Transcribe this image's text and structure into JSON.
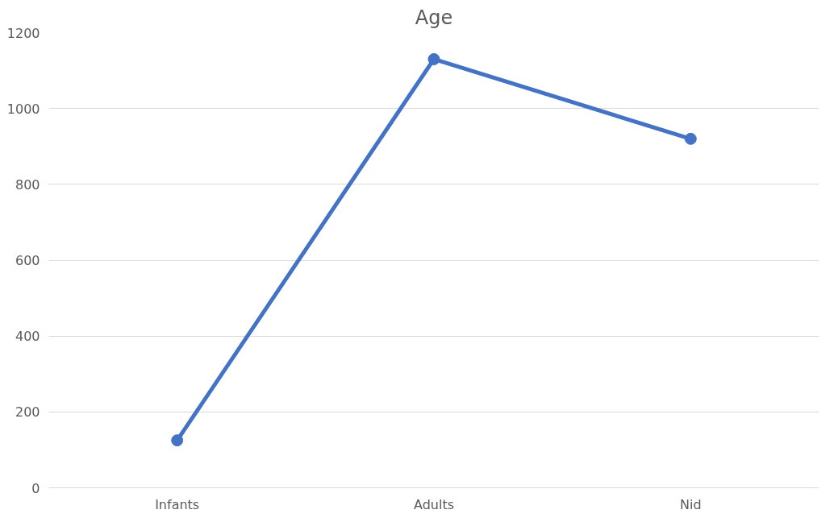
{
  "chart_data": {
    "type": "line",
    "title": "Age",
    "categories": [
      "Infants",
      "Adults",
      "Nid"
    ],
    "series": [
      {
        "color": "#4472c4",
        "values": [
          125,
          1130,
          920
        ]
      }
    ],
    "ylim": [
      0,
      1200
    ],
    "yticks": [
      0,
      200,
      400,
      600,
      800,
      1000,
      1200
    ],
    "grid": "y",
    "marker": "circle",
    "line_style": "solid"
  }
}
